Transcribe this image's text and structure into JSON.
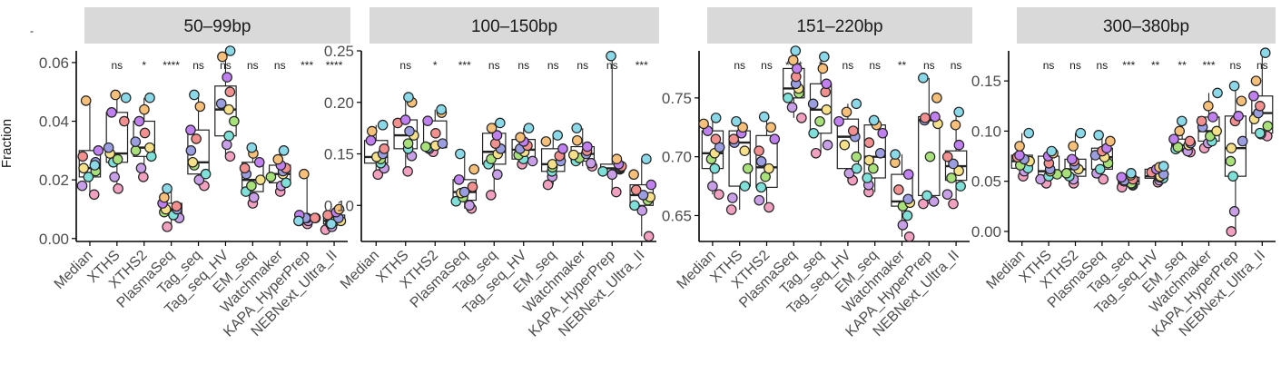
{
  "figure": {
    "ylabel": "Fraction",
    "corner_mark": "-"
  },
  "palette": [
    "#f2a0c0",
    "#c9a0e8",
    "#7ee0d8",
    "#a8e07a",
    "#f7e08a",
    "#9a9ee0",
    "#f29090",
    "#c080f0",
    "#f7c07a",
    "#8ad8e8"
  ],
  "chart_data": [
    {
      "type": "box",
      "title": "50–99bp",
      "xlabel": "",
      "ylabel": "Fraction",
      "ylim": [
        -0.001,
        0.064
      ],
      "yticks": [
        0.0,
        0.02,
        0.04,
        0.06
      ],
      "ytick_labels": [
        "0.00",
        "0.02",
        "0.04",
        "0.06"
      ],
      "categories": [
        "Median",
        "XTHS",
        "XTHS2",
        "PlasmaSeq",
        "Tag_seq",
        "Tag_seq_HV",
        "EM_seq",
        "Watchmaker",
        "KAPA_HyperPrep",
        "NEBNext_Ultra_II"
      ],
      "significance": [
        "",
        "ns",
        "*",
        "****",
        "ns",
        "ns",
        "ns",
        "ns",
        "***",
        "****"
      ],
      "stats": [
        {
          "min": 0.015,
          "q1": 0.021,
          "median": 0.024,
          "q3": 0.03,
          "max": 0.047
        },
        {
          "min": 0.017,
          "q1": 0.026,
          "median": 0.029,
          "q3": 0.043,
          "max": 0.049
        },
        {
          "min": 0.021,
          "q1": 0.028,
          "median": 0.031,
          "q3": 0.04,
          "max": 0.048
        },
        {
          "min": 0.004,
          "q1": 0.008,
          "median": 0.01,
          "q3": 0.012,
          "max": 0.017
        },
        {
          "min": 0.018,
          "q1": 0.022,
          "median": 0.026,
          "q3": 0.037,
          "max": 0.049
        },
        {
          "min": 0.028,
          "q1": 0.035,
          "median": 0.044,
          "q3": 0.052,
          "max": 0.064
        },
        {
          "min": 0.012,
          "q1": 0.016,
          "median": 0.02,
          "q3": 0.026,
          "max": 0.031
        },
        {
          "min": 0.016,
          "q1": 0.019,
          "median": 0.022,
          "q3": 0.025,
          "max": 0.03
        },
        {
          "min": 0.005,
          "q1": 0.006,
          "median": 0.007,
          "q3": 0.007,
          "max": 0.022
        },
        {
          "min": 0.003,
          "q1": 0.005,
          "median": 0.006,
          "q3": 0.008,
          "max": 0.01
        }
      ],
      "points": [
        [
          0.015,
          0.018,
          0.021,
          0.023,
          0.024,
          0.026,
          0.028,
          0.03,
          0.047,
          0.025
        ],
        [
          0.017,
          0.021,
          0.026,
          0.027,
          0.029,
          0.031,
          0.04,
          0.043,
          0.049,
          0.048
        ],
        [
          0.021,
          0.024,
          0.028,
          0.03,
          0.031,
          0.033,
          0.036,
          0.04,
          0.044,
          0.048
        ],
        [
          0.004,
          0.007,
          0.008,
          0.009,
          0.01,
          0.01,
          0.011,
          0.012,
          0.014,
          0.017
        ],
        [
          0.018,
          0.02,
          0.022,
          0.025,
          0.026,
          0.03,
          0.034,
          0.037,
          0.045,
          0.049
        ],
        [
          0.028,
          0.032,
          0.035,
          0.04,
          0.044,
          0.046,
          0.05,
          0.055,
          0.062,
          0.064
        ],
        [
          0.012,
          0.014,
          0.016,
          0.018,
          0.02,
          0.022,
          0.024,
          0.026,
          0.029,
          0.031
        ],
        [
          0.016,
          0.018,
          0.019,
          0.021,
          0.022,
          0.023,
          0.024,
          0.025,
          0.027,
          0.03
        ],
        [
          0.005,
          0.006,
          0.006,
          0.007,
          0.007,
          0.007,
          0.007,
          0.008,
          0.022,
          0.006
        ],
        [
          0.003,
          0.004,
          0.005,
          0.006,
          0.006,
          0.007,
          0.008,
          0.009,
          0.01,
          0.005
        ]
      ]
    },
    {
      "type": "box",
      "title": "100–150bp",
      "xlabel": "",
      "ylabel": "",
      "ylim": [
        0.065,
        0.25
      ],
      "yticks": [
        0.1,
        0.15,
        0.2,
        0.25
      ],
      "ytick_labels": [
        "0.10",
        "0.15",
        "0.20",
        "0.25"
      ],
      "categories": [
        "Median",
        "XTHS",
        "XTHS2",
        "PlasmaSeq",
        "Tag_seq",
        "Tag_seq_HV",
        "EM_seq",
        "Watchmaker",
        "KAPA_HyperPrep",
        "NEBNext_Ultra_II"
      ],
      "significance": [
        "",
        "ns",
        "*",
        "***",
        "ns",
        "ns",
        "ns",
        "ns",
        "ns",
        "***"
      ],
      "stats": [
        {
          "min": 0.13,
          "q1": 0.141,
          "median": 0.147,
          "q3": 0.163,
          "max": 0.178
        },
        {
          "min": 0.133,
          "q1": 0.155,
          "median": 0.168,
          "q3": 0.183,
          "max": 0.205
        },
        {
          "min": 0.152,
          "q1": 0.156,
          "median": 0.158,
          "q3": 0.182,
          "max": 0.193
        },
        {
          "min": 0.097,
          "q1": 0.105,
          "median": 0.113,
          "q3": 0.125,
          "max": 0.15
        },
        {
          "min": 0.11,
          "q1": 0.14,
          "median": 0.152,
          "q3": 0.17,
          "max": 0.18
        },
        {
          "min": 0.14,
          "q1": 0.145,
          "median": 0.154,
          "q3": 0.164,
          "max": 0.175
        },
        {
          "min": 0.12,
          "q1": 0.133,
          "median": 0.14,
          "q3": 0.155,
          "max": 0.168
        },
        {
          "min": 0.138,
          "q1": 0.143,
          "median": 0.15,
          "q3": 0.157,
          "max": 0.175
        },
        {
          "min": 0.113,
          "q1": 0.132,
          "median": 0.136,
          "q3": 0.14,
          "max": 0.245
        },
        {
          "min": 0.07,
          "q1": 0.1,
          "median": 0.11,
          "q3": 0.12,
          "max": 0.145
        }
      ],
      "points": [
        [
          0.13,
          0.136,
          0.141,
          0.145,
          0.147,
          0.15,
          0.155,
          0.163,
          0.172,
          0.178
        ],
        [
          0.133,
          0.148,
          0.155,
          0.16,
          0.168,
          0.172,
          0.18,
          0.183,
          0.2,
          0.205
        ],
        [
          0.152,
          0.155,
          0.156,
          0.157,
          0.158,
          0.16,
          0.17,
          0.182,
          0.19,
          0.193
        ],
        [
          0.097,
          0.1,
          0.104,
          0.108,
          0.112,
          0.113,
          0.118,
          0.125,
          0.135,
          0.15
        ],
        [
          0.11,
          0.13,
          0.14,
          0.145,
          0.15,
          0.155,
          0.16,
          0.168,
          0.175,
          0.18
        ],
        [
          0.14,
          0.143,
          0.145,
          0.149,
          0.152,
          0.155,
          0.158,
          0.162,
          0.166,
          0.175
        ],
        [
          0.12,
          0.128,
          0.133,
          0.137,
          0.14,
          0.143,
          0.148,
          0.155,
          0.162,
          0.168
        ],
        [
          0.138,
          0.141,
          0.143,
          0.146,
          0.149,
          0.15,
          0.153,
          0.157,
          0.163,
          0.175
        ],
        [
          0.113,
          0.13,
          0.133,
          0.135,
          0.136,
          0.137,
          0.138,
          0.14,
          0.145,
          0.245
        ],
        [
          0.07,
          0.095,
          0.1,
          0.105,
          0.108,
          0.11,
          0.115,
          0.12,
          0.13,
          0.145
        ]
      ]
    },
    {
      "type": "box",
      "title": "151–220bp",
      "xlabel": "",
      "ylabel": "",
      "ylim": [
        0.628,
        0.79
      ],
      "yticks": [
        0.65,
        0.7,
        0.75
      ],
      "ytick_labels": [
        "0.65",
        "0.70",
        "0.75"
      ],
      "categories": [
        "Median",
        "XTHS",
        "XTHS2",
        "PlasmaSeq",
        "Tag_seq",
        "Tag_seq_HV",
        "EM_seq",
        "Watchmaker",
        "KAPA_HyperPrep",
        "NEBNext_Ultra_II"
      ],
      "significance": [
        "",
        "ns",
        "ns",
        "****",
        "*",
        "ns",
        "ns",
        "**",
        "ns",
        "ns"
      ],
      "stats": [
        {
          "min": 0.668,
          "q1": 0.69,
          "median": 0.703,
          "q3": 0.722,
          "max": 0.733
        },
        {
          "min": 0.655,
          "q1": 0.675,
          "median": 0.712,
          "q3": 0.722,
          "max": 0.73
        },
        {
          "min": 0.657,
          "q1": 0.674,
          "median": 0.691,
          "q3": 0.718,
          "max": 0.734
        },
        {
          "min": 0.733,
          "q1": 0.75,
          "median": 0.758,
          "q3": 0.775,
          "max": 0.79
        },
        {
          "min": 0.703,
          "q1": 0.72,
          "median": 0.74,
          "q3": 0.762,
          "max": 0.785
        },
        {
          "min": 0.68,
          "q1": 0.69,
          "median": 0.717,
          "q3": 0.732,
          "max": 0.745
        },
        {
          "min": 0.67,
          "q1": 0.682,
          "median": 0.7,
          "q3": 0.727,
          "max": 0.731
        },
        {
          "min": 0.632,
          "q1": 0.658,
          "median": 0.662,
          "q3": 0.685,
          "max": 0.702
        },
        {
          "min": 0.66,
          "q1": 0.667,
          "median": 0.731,
          "q3": 0.734,
          "max": 0.767
        },
        {
          "min": 0.66,
          "q1": 0.68,
          "median": 0.692,
          "q3": 0.705,
          "max": 0.738
        }
      ],
      "points": [
        [
          0.668,
          0.675,
          0.69,
          0.698,
          0.703,
          0.708,
          0.715,
          0.722,
          0.728,
          0.733
        ],
        [
          0.655,
          0.665,
          0.675,
          0.69,
          0.705,
          0.712,
          0.715,
          0.72,
          0.725,
          0.73
        ],
        [
          0.657,
          0.663,
          0.674,
          0.683,
          0.69,
          0.696,
          0.705,
          0.715,
          0.725,
          0.734
        ],
        [
          0.733,
          0.742,
          0.75,
          0.754,
          0.758,
          0.762,
          0.768,
          0.775,
          0.782,
          0.79
        ],
        [
          0.703,
          0.71,
          0.72,
          0.73,
          0.74,
          0.745,
          0.755,
          0.762,
          0.775,
          0.785
        ],
        [
          0.68,
          0.686,
          0.69,
          0.7,
          0.71,
          0.717,
          0.722,
          0.73,
          0.738,
          0.745
        ],
        [
          0.67,
          0.676,
          0.682,
          0.69,
          0.697,
          0.703,
          0.712,
          0.72,
          0.727,
          0.731
        ],
        [
          0.632,
          0.642,
          0.65,
          0.658,
          0.661,
          0.664,
          0.672,
          0.685,
          0.695,
          0.702
        ],
        [
          0.66,
          0.662,
          0.667,
          0.7,
          0.728,
          0.731,
          0.733,
          0.734,
          0.75,
          0.767
        ],
        [
          0.66,
          0.668,
          0.675,
          0.682,
          0.688,
          0.694,
          0.7,
          0.71,
          0.727,
          0.738
        ]
      ]
    },
    {
      "type": "box",
      "title": "300–380bp",
      "xlabel": "",
      "ylabel": "",
      "ylim": [
        -0.01,
        0.18
      ],
      "yticks": [
        0.0,
        0.05,
        0.1,
        0.15
      ],
      "ytick_labels": [
        "0.00",
        "0.05",
        "0.10",
        "0.15"
      ],
      "categories": [
        "Median",
        "XTHS",
        "XTHS2",
        "PlasmaSeq",
        "Tag_seq",
        "Tag_seq_HV",
        "EM_seq",
        "Watchmaker",
        "KAPA_HyperPrep",
        "NEBNext_Ultra_II"
      ],
      "significance": [
        "",
        "ns",
        "ns",
        "ns",
        "***",
        "**",
        "**",
        "***",
        "ns",
        "ns"
      ],
      "stats": [
        {
          "min": 0.055,
          "q1": 0.063,
          "median": 0.07,
          "q3": 0.076,
          "max": 0.098
        },
        {
          "min": 0.048,
          "q1": 0.055,
          "median": 0.06,
          "q3": 0.075,
          "max": 0.08
        },
        {
          "min": 0.048,
          "q1": 0.055,
          "median": 0.062,
          "q3": 0.072,
          "max": 0.098
        },
        {
          "min": 0.052,
          "q1": 0.062,
          "median": 0.074,
          "q3": 0.083,
          "max": 0.096
        },
        {
          "min": 0.044,
          "q1": 0.047,
          "median": 0.05,
          "q3": 0.054,
          "max": 0.058
        },
        {
          "min": 0.049,
          "q1": 0.053,
          "median": 0.055,
          "q3": 0.062,
          "max": 0.065
        },
        {
          "min": 0.079,
          "q1": 0.082,
          "median": 0.086,
          "q3": 0.092,
          "max": 0.11
        },
        {
          "min": 0.083,
          "q1": 0.09,
          "median": 0.1,
          "q3": 0.114,
          "max": 0.138
        },
        {
          "min": 0.0,
          "q1": 0.055,
          "median": 0.083,
          "q3": 0.115,
          "max": 0.145
        },
        {
          "min": 0.095,
          "q1": 0.098,
          "median": 0.118,
          "q3": 0.135,
          "max": 0.178
        }
      ],
      "points": [
        [
          0.055,
          0.06,
          0.063,
          0.066,
          0.07,
          0.072,
          0.074,
          0.076,
          0.085,
          0.098
        ],
        [
          0.048,
          0.052,
          0.055,
          0.057,
          0.06,
          0.062,
          0.068,
          0.075,
          0.078,
          0.08
        ],
        [
          0.048,
          0.052,
          0.055,
          0.058,
          0.062,
          0.066,
          0.07,
          0.072,
          0.085,
          0.098
        ],
        [
          0.052,
          0.058,
          0.062,
          0.068,
          0.074,
          0.076,
          0.08,
          0.083,
          0.09,
          0.096
        ],
        [
          0.044,
          0.046,
          0.047,
          0.048,
          0.05,
          0.051,
          0.052,
          0.054,
          0.056,
          0.058
        ],
        [
          0.049,
          0.051,
          0.053,
          0.054,
          0.055,
          0.057,
          0.059,
          0.062,
          0.064,
          0.065
        ],
        [
          0.079,
          0.08,
          0.082,
          0.084,
          0.086,
          0.088,
          0.09,
          0.092,
          0.1,
          0.11
        ],
        [
          0.083,
          0.088,
          0.09,
          0.095,
          0.1,
          0.104,
          0.11,
          0.114,
          0.125,
          0.138
        ],
        [
          0.0,
          0.02,
          0.055,
          0.07,
          0.083,
          0.09,
          0.11,
          0.115,
          0.13,
          0.145
        ],
        [
          0.095,
          0.097,
          0.098,
          0.105,
          0.112,
          0.118,
          0.125,
          0.135,
          0.15,
          0.178
        ]
      ]
    }
  ]
}
